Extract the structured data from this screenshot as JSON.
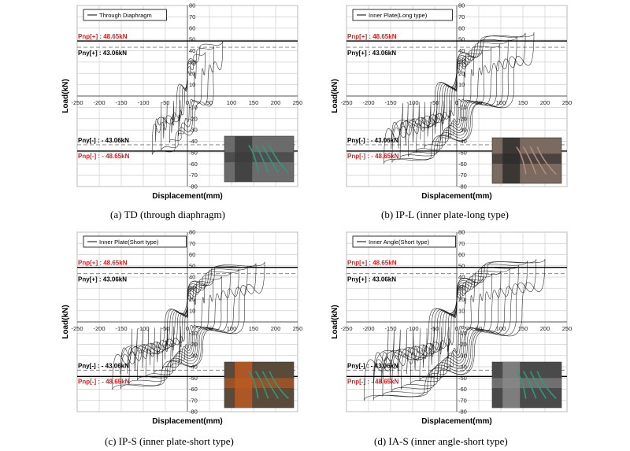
{
  "panels": [
    {
      "caption": "(a) TD (through diaphragm)",
      "photo_colors": [
        "#6b6b6b",
        "#2e9a7a",
        "#3a3a3a"
      ]
    },
    {
      "caption": "(b) IP-L (inner plate-long type)",
      "photo_colors": [
        "#7a6a60",
        "#b58a7a",
        "#2a2a2a"
      ]
    },
    {
      "caption": "(c) IP-S (inner plate-short type)",
      "photo_colors": [
        "#5a4a3a",
        "#2e9a7a",
        "#c05a20"
      ]
    },
    {
      "caption": "(d) IA-S (inner angle-short type)",
      "photo_colors": [
        "#4a4a4a",
        "#2e9a7a",
        "#8a8a8a"
      ]
    }
  ],
  "chart_data": [
    {
      "type": "line",
      "series": [
        {
          "name": "Through Diaphragm",
          "peak_pos": 50,
          "peak_neg": -54,
          "max_disp_pos": 80,
          "max_disp_neg": -80,
          "cycles": 4
        }
      ],
      "xlabel": "Displacement(mm)",
      "ylabel": "Load(kN)",
      "xlim": [
        -250,
        250
      ],
      "ylim": [
        -80,
        80
      ],
      "xticks": [
        -250,
        -200,
        -150,
        -100,
        -50,
        0,
        50,
        100,
        150,
        200,
        250
      ],
      "yticks": [
        -80,
        -70,
        -60,
        -50,
        -40,
        -30,
        -20,
        -10,
        0,
        10,
        20,
        30,
        40,
        50,
        60,
        70,
        80
      ],
      "reference_lines": [
        {
          "label": "Pnp[+] : 48.65kN",
          "value": 48.65,
          "color": "#d42020",
          "style": "solid"
        },
        {
          "label": "Pny[+] : 43.06kN",
          "value": 43.06,
          "color": "#000000",
          "style": "dashed"
        },
        {
          "label": "Pny[-] : - 43.06kN",
          "value": -43.06,
          "color": "#000000",
          "style": "dashed"
        },
        {
          "label": "Pnp[-] : - 48.65kN",
          "value": -48.65,
          "color": "#d42020",
          "style": "solid"
        }
      ],
      "grid": true,
      "legend": "top-left"
    },
    {
      "type": "line",
      "series": [
        {
          "name": "Inner Plate(Long type)",
          "peak_pos": 58,
          "peak_neg": -62,
          "max_disp_pos": 175,
          "max_disp_neg": -165,
          "cycles": 9
        }
      ],
      "xlabel": "Displacement(mm)",
      "ylabel": "Load(kN)",
      "xlim": [
        -250,
        250
      ],
      "ylim": [
        -80,
        80
      ],
      "xticks": [
        -250,
        -200,
        -150,
        -100,
        -50,
        0,
        50,
        100,
        150,
        200,
        250
      ],
      "yticks": [
        -80,
        -70,
        -60,
        -50,
        -40,
        -30,
        -20,
        -10,
        0,
        10,
        20,
        30,
        40,
        50,
        60,
        70,
        80
      ],
      "reference_lines": [
        {
          "label": "Pnp[+] : 48.65kN",
          "value": 48.65,
          "color": "#d42020",
          "style": "solid"
        },
        {
          "label": "Pny[+] : 43.06kN",
          "value": 43.06,
          "color": "#000000",
          "style": "dashed"
        },
        {
          "label": "Pny[-] : - 43.06kN",
          "value": -43.06,
          "color": "#000000",
          "style": "dashed"
        },
        {
          "label": "Pnp[-] : - 48.65kN",
          "value": -48.65,
          "color": "#d42020",
          "style": "solid"
        }
      ],
      "grid": true,
      "legend": "top-left"
    },
    {
      "type": "line",
      "series": [
        {
          "name": "Inner Plate(Short type)",
          "peak_pos": 55,
          "peak_neg": -62,
          "max_disp_pos": 175,
          "max_disp_neg": -170,
          "cycles": 9
        }
      ],
      "xlabel": "Displacement(mm)",
      "ylabel": "Load(kN)",
      "xlim": [
        -250,
        250
      ],
      "ylim": [
        -80,
        80
      ],
      "xticks": [
        -250,
        -200,
        -150,
        -100,
        -50,
        0,
        50,
        100,
        150,
        200,
        250
      ],
      "yticks": [
        -80,
        -70,
        -60,
        -50,
        -40,
        -30,
        -20,
        -10,
        0,
        10,
        20,
        30,
        40,
        50,
        60,
        70,
        80
      ],
      "reference_lines": [
        {
          "label": "Pnp[+] : 48.65kN",
          "value": 48.65,
          "color": "#d42020",
          "style": "solid"
        },
        {
          "label": "Pny[+] : 43.06kN",
          "value": 43.06,
          "color": "#000000",
          "style": "dashed"
        },
        {
          "label": "Pny[-] : - 43.06kN",
          "value": -43.06,
          "color": "#000000",
          "style": "dashed"
        },
        {
          "label": "Pnp[-] : - 48.65kN",
          "value": -48.65,
          "color": "#d42020",
          "style": "solid"
        }
      ],
      "grid": true,
      "legend": "top-left"
    },
    {
      "type": "line",
      "series": [
        {
          "name": "Inner Angle(Short type)",
          "peak_pos": 59,
          "peak_neg": -73,
          "max_disp_pos": 200,
          "max_disp_neg": -210,
          "cycles": 10
        }
      ],
      "xlabel": "Displacement(mm)",
      "ylabel": "Load(kN)",
      "xlim": [
        -250,
        250
      ],
      "ylim": [
        -80,
        80
      ],
      "xticks": [
        -250,
        -200,
        -150,
        -100,
        -50,
        0,
        50,
        100,
        150,
        200,
        250
      ],
      "yticks": [
        -80,
        -70,
        -60,
        -50,
        -40,
        -30,
        -20,
        -10,
        0,
        10,
        20,
        30,
        40,
        50,
        60,
        70,
        80
      ],
      "reference_lines": [
        {
          "label": "Pnp[+] : 48.65kN",
          "value": 48.65,
          "color": "#d42020",
          "style": "solid"
        },
        {
          "label": "Pny[+] : 43.06kN",
          "value": 43.06,
          "color": "#000000",
          "style": "dashed"
        },
        {
          "label": "Pny[-] : - 43.06kN",
          "value": -43.06,
          "color": "#000000",
          "style": "dashed"
        },
        {
          "label": "Pnp[-] : - 48.65kN",
          "value": -48.65,
          "color": "#d42020",
          "style": "solid"
        }
      ],
      "grid": true,
      "legend": "top-left"
    }
  ]
}
